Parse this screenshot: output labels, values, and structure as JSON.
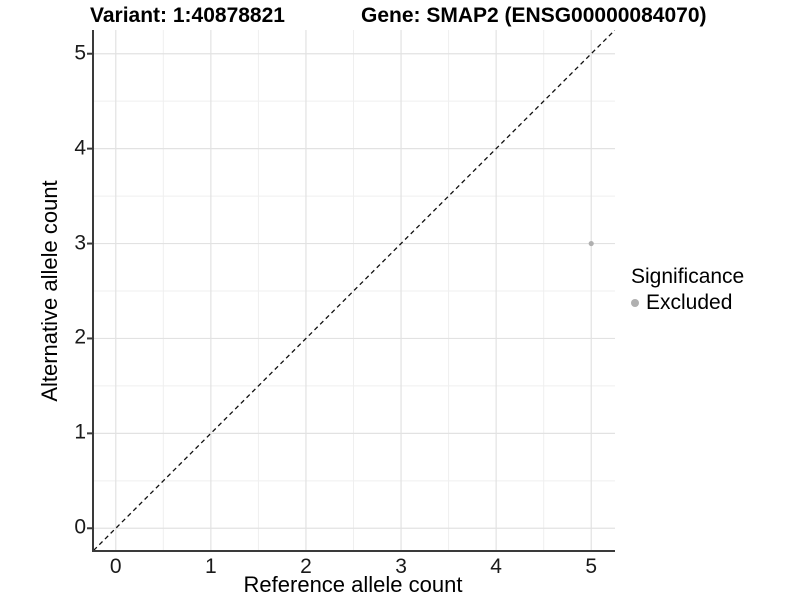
{
  "chart_data": {
    "type": "scatter",
    "title_left": "Variant: 1:40878821",
    "title_right": "Gene: SMAP2 (ENSG00000084070)",
    "xlabel": "Reference allele count",
    "ylabel": "Alternative allele count",
    "xlim": [
      -0.25,
      5.25
    ],
    "ylim": [
      -0.25,
      5.25
    ],
    "x_ticks": [
      0,
      1,
      2,
      3,
      4,
      5
    ],
    "y_ticks": [
      0,
      1,
      2,
      3,
      4,
      5
    ],
    "grid": {
      "major_color": "#e2e2e2",
      "minor_color": "#efefef",
      "background": "#ffffff"
    },
    "axis_line_color": "#3a3a3a",
    "identity_line": {
      "style": "dashed",
      "color": "#111111",
      "from": [
        -0.25,
        -0.25
      ],
      "to": [
        5.25,
        5.25
      ]
    },
    "series": [
      {
        "name": "Excluded",
        "color": "#b0b0b0",
        "points": [
          {
            "x": 5,
            "y": 3
          }
        ]
      }
    ],
    "legend": {
      "title": "Significance",
      "position": "right",
      "items": [
        {
          "label": "Excluded",
          "color": "#b0b0b0"
        }
      ]
    }
  }
}
